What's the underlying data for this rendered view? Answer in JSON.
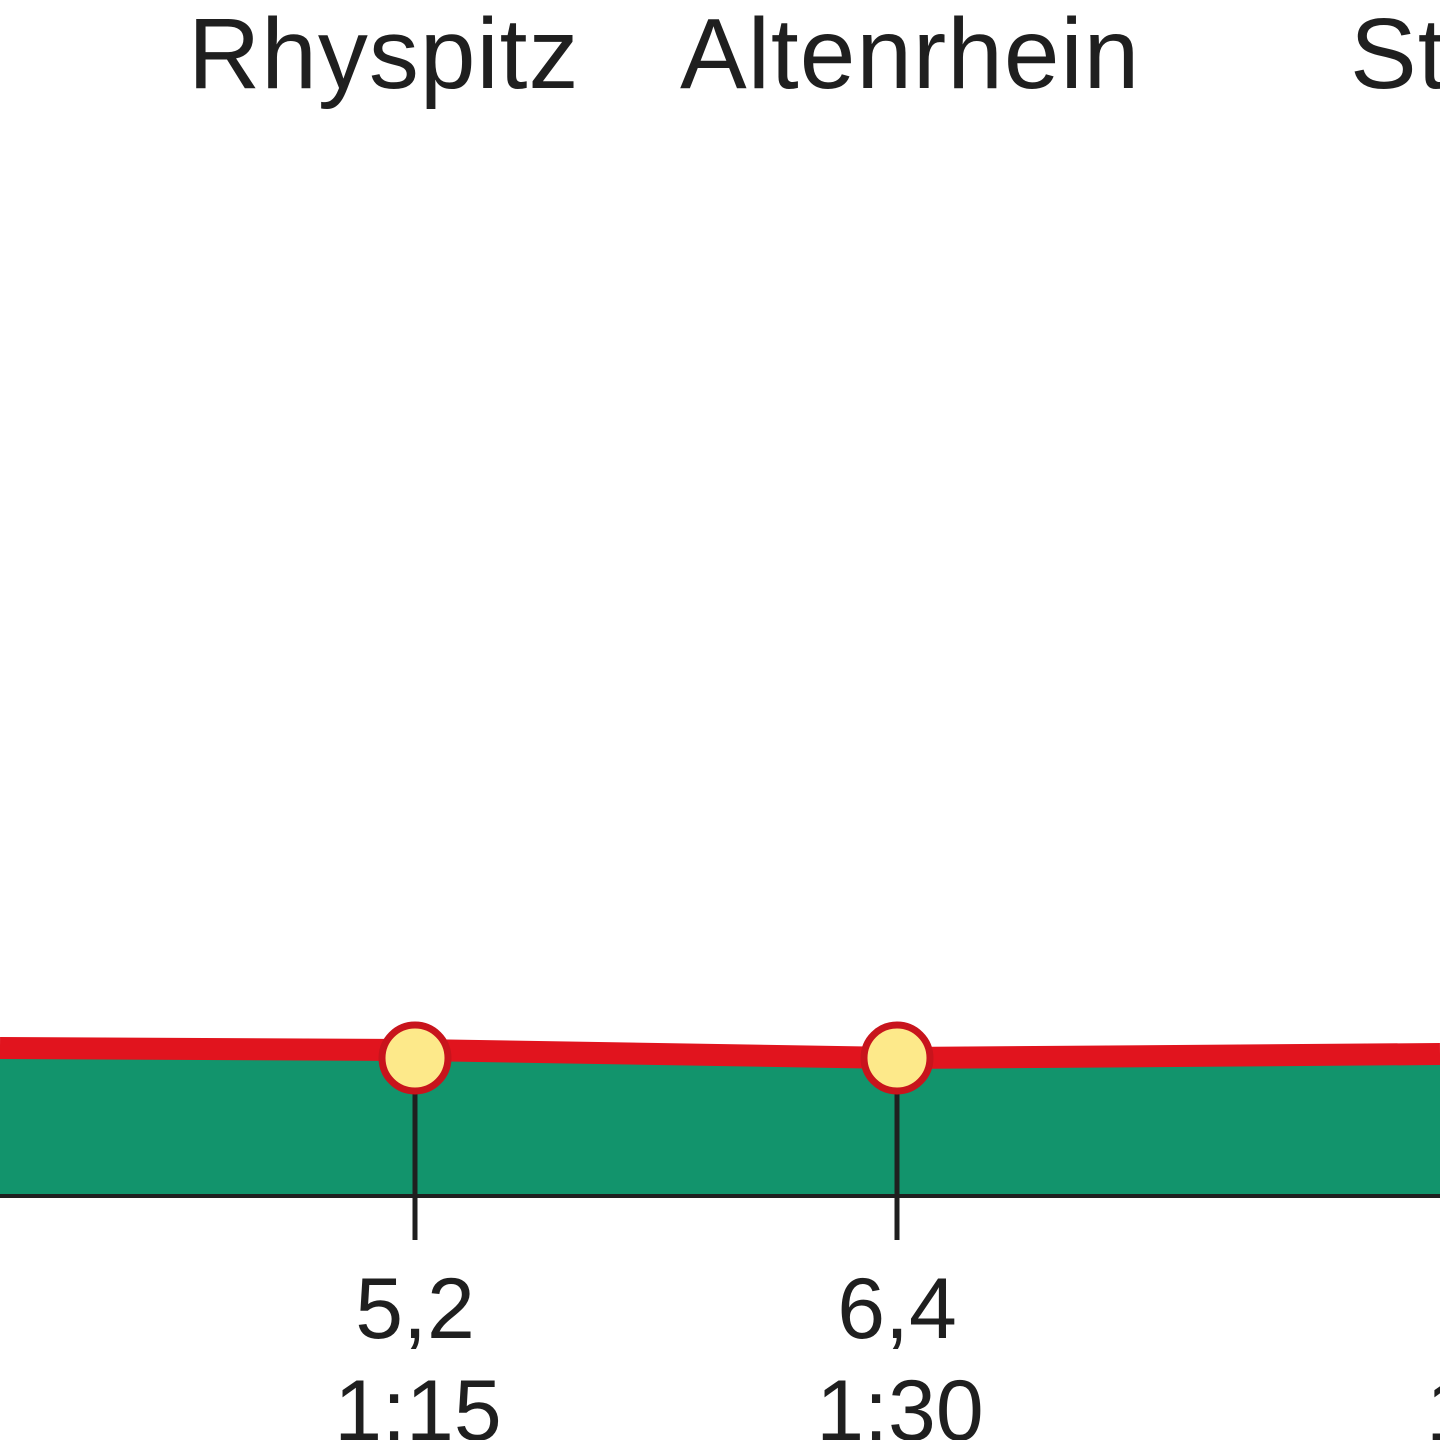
{
  "colors": {
    "ground": "#12946c",
    "route": "#e1141e",
    "waypoint_fill": "#fde98a",
    "waypoint_stroke": "#c8141c",
    "tick": "#1f1f1f",
    "text": "#1f1f1f"
  },
  "places": [
    {
      "name": "Rhyspitz"
    },
    {
      "name": "Altenrhein"
    },
    {
      "name": "St"
    }
  ],
  "waypoints": [
    {
      "km": "5,2",
      "time": "1:15"
    },
    {
      "km": "6,4",
      "time": "1:30"
    },
    {
      "km": "",
      "time": "1"
    }
  ]
}
